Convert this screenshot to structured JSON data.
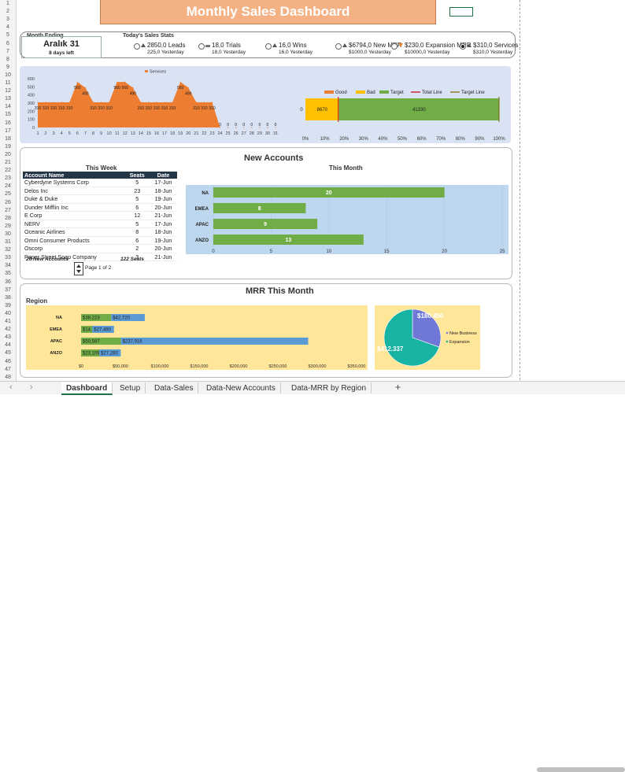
{
  "title": "Monthly Sales Dashboard",
  "rows": [
    "1",
    "2",
    "3",
    "4",
    "5",
    "6",
    "7",
    "8",
    "9",
    "10",
    "11",
    "12",
    "13",
    "14",
    "15",
    "16",
    "17",
    "18",
    "19",
    "20",
    "21",
    "22",
    "23",
    "24",
    "25",
    "26",
    "27",
    "28",
    "29",
    "30",
    "31",
    "32",
    "33",
    "34",
    "35",
    "36",
    "37",
    "38",
    "39",
    "40",
    "41",
    "42",
    "43",
    "44",
    "45",
    "46",
    "47",
    "48"
  ],
  "month": {
    "label": "Month Ending",
    "value": "Aralık 31",
    "sub": "8 days left"
  },
  "stats_heading": "Today's Sales Stats",
  "stats": [
    {
      "big": "2850,0 Leads",
      "yd": "225,0 Yesterday",
      "dir": "up",
      "selected": false
    },
    {
      "big": "18,0 Trials",
      "yd": "18,0 Yesterday",
      "dir": "flat",
      "selected": false
    },
    {
      "big": "16,0 Wins",
      "yd": "16,0 Yesterday",
      "dir": "up",
      "selected": false
    },
    {
      "big": "$6794,0 New MRR",
      "yd": "$1000,0 Yesterday",
      "dir": "up",
      "selected": false
    },
    {
      "big": "$230,0 Expansion MRR",
      "yd": "$10000,0 Yesterday",
      "dir": "down",
      "selected": false
    },
    {
      "big": "$310,0 Services",
      "yd": "$310,0 Yesterday",
      "dir": "up",
      "selected": true
    }
  ],
  "new_accounts_title": "New Accounts",
  "this_week": "This Week",
  "this_month": "This Month",
  "table": {
    "headers": [
      "Account Name",
      "Seats",
      "Date"
    ],
    "rows": [
      [
        "Cyberdyne Systems Corp",
        "5",
        "17-Jun"
      ],
      [
        "Delos Inc",
        "23",
        "18-Jun"
      ],
      [
        "Duke & Duke",
        "5",
        "19-Jun"
      ],
      [
        "Dunder Mifflin Inc",
        "6",
        "20-Jun"
      ],
      [
        "E Corp",
        "12",
        "21-Jun"
      ],
      [
        "NERV",
        "5",
        "17-Jun"
      ],
      [
        "Oceanic Airlines",
        "8",
        "18-Jun"
      ],
      [
        "Omni Consumer Products",
        "6",
        "19-Jun"
      ],
      [
        "Oscorp",
        "2",
        "20-Jun"
      ],
      [
        "Paper Street Soap Company",
        "3",
        "21-Jun"
      ]
    ],
    "footer_left": "20 New Accounts",
    "footer_right": "122 Seats",
    "page": "Page 1 of 2"
  },
  "mrr_title": "MRR This Month",
  "region_label": "Region",
  "colors": {
    "orange": "#ed7d31",
    "yellow": "#ffc000",
    "green": "#70ad47",
    "blue": "#5b9bd5",
    "teal": "#17b3a3",
    "purple_blue": "#6f78d6",
    "title_bg": "#f4b183"
  },
  "chart_data": [
    {
      "type": "area",
      "legend": [
        "Services"
      ],
      "x": [
        1,
        2,
        3,
        4,
        5,
        6,
        7,
        8,
        9,
        10,
        11,
        12,
        13,
        14,
        15,
        16,
        17,
        18,
        19,
        20,
        21,
        22,
        23,
        24,
        25,
        26,
        27,
        28,
        29,
        30,
        31
      ],
      "values": [
        310,
        310,
        310,
        310,
        310,
        560,
        490,
        310,
        310,
        310,
        560,
        560,
        490,
        310,
        310,
        310,
        310,
        310,
        560,
        490,
        310,
        310,
        310,
        0,
        0,
        0,
        0,
        0,
        0,
        0,
        0
      ],
      "yticks": [
        "0",
        "100",
        "200",
        "300",
        "400",
        "500",
        "600"
      ],
      "ylim": [
        0,
        600
      ]
    },
    {
      "type": "bar",
      "orientation": "horizontal-stacked",
      "legend": [
        "Good",
        "Bad",
        "Target",
        "Total Line",
        "Target Line"
      ],
      "segments": [
        {
          "name": "Good",
          "value": 0,
          "label": "0"
        },
        {
          "name": "Bad",
          "value": 8670,
          "label": "8670"
        },
        {
          "name": "Target",
          "value": 41330,
          "label": "41330"
        }
      ],
      "total_line_pct": 0.17,
      "target_line_pct": 1.0,
      "xticks": [
        "0%",
        "10%",
        "20%",
        "30%",
        "40%",
        "50%",
        "60%",
        "70%",
        "80%",
        "90%",
        "100%"
      ]
    },
    {
      "type": "bar",
      "orientation": "horizontal",
      "categories": [
        "NA",
        "EMEA",
        "APAC",
        "ANZO"
      ],
      "values": [
        20,
        8,
        9,
        13
      ],
      "xticks": [
        "0",
        "5",
        "10",
        "15",
        "20",
        "25"
      ],
      "xlim": [
        0,
        25
      ]
    },
    {
      "type": "bar",
      "orientation": "horizontal-stacked",
      "categories": [
        "NA",
        "EMEA",
        "APAC",
        "ANZO"
      ],
      "series": [
        {
          "values": [
            38223,
            14305,
            50587,
            23109
          ],
          "labels": [
            "$38,223",
            "$14,305",
            "$50,587",
            "$23,109"
          ]
        },
        {
          "values": [
            42720,
            27490,
            237916,
            27280
          ],
          "labels": [
            "$42,720",
            "$27,490",
            "$237,916",
            "$27,280"
          ]
        }
      ],
      "xticks": [
        "$0",
        "$50,000",
        "$100,000",
        "$150,000",
        "$200,000",
        "$250,000",
        "$300,000",
        "$350,000"
      ],
      "xlim": [
        0,
        350000
      ]
    },
    {
      "type": "pie",
      "slices": [
        {
          "name": "New Business",
          "value": 180450,
          "label": "$180.450"
        },
        {
          "name": "Expansion",
          "value": 412337,
          "label": "$412.337"
        }
      ]
    }
  ],
  "tabs": [
    "Dashboard",
    "Setup",
    "Data-Sales",
    "Data-New Accounts",
    "Data-MRR by Region"
  ],
  "add_tab": "+",
  "nav_prev": "‹",
  "nav_next": "›"
}
